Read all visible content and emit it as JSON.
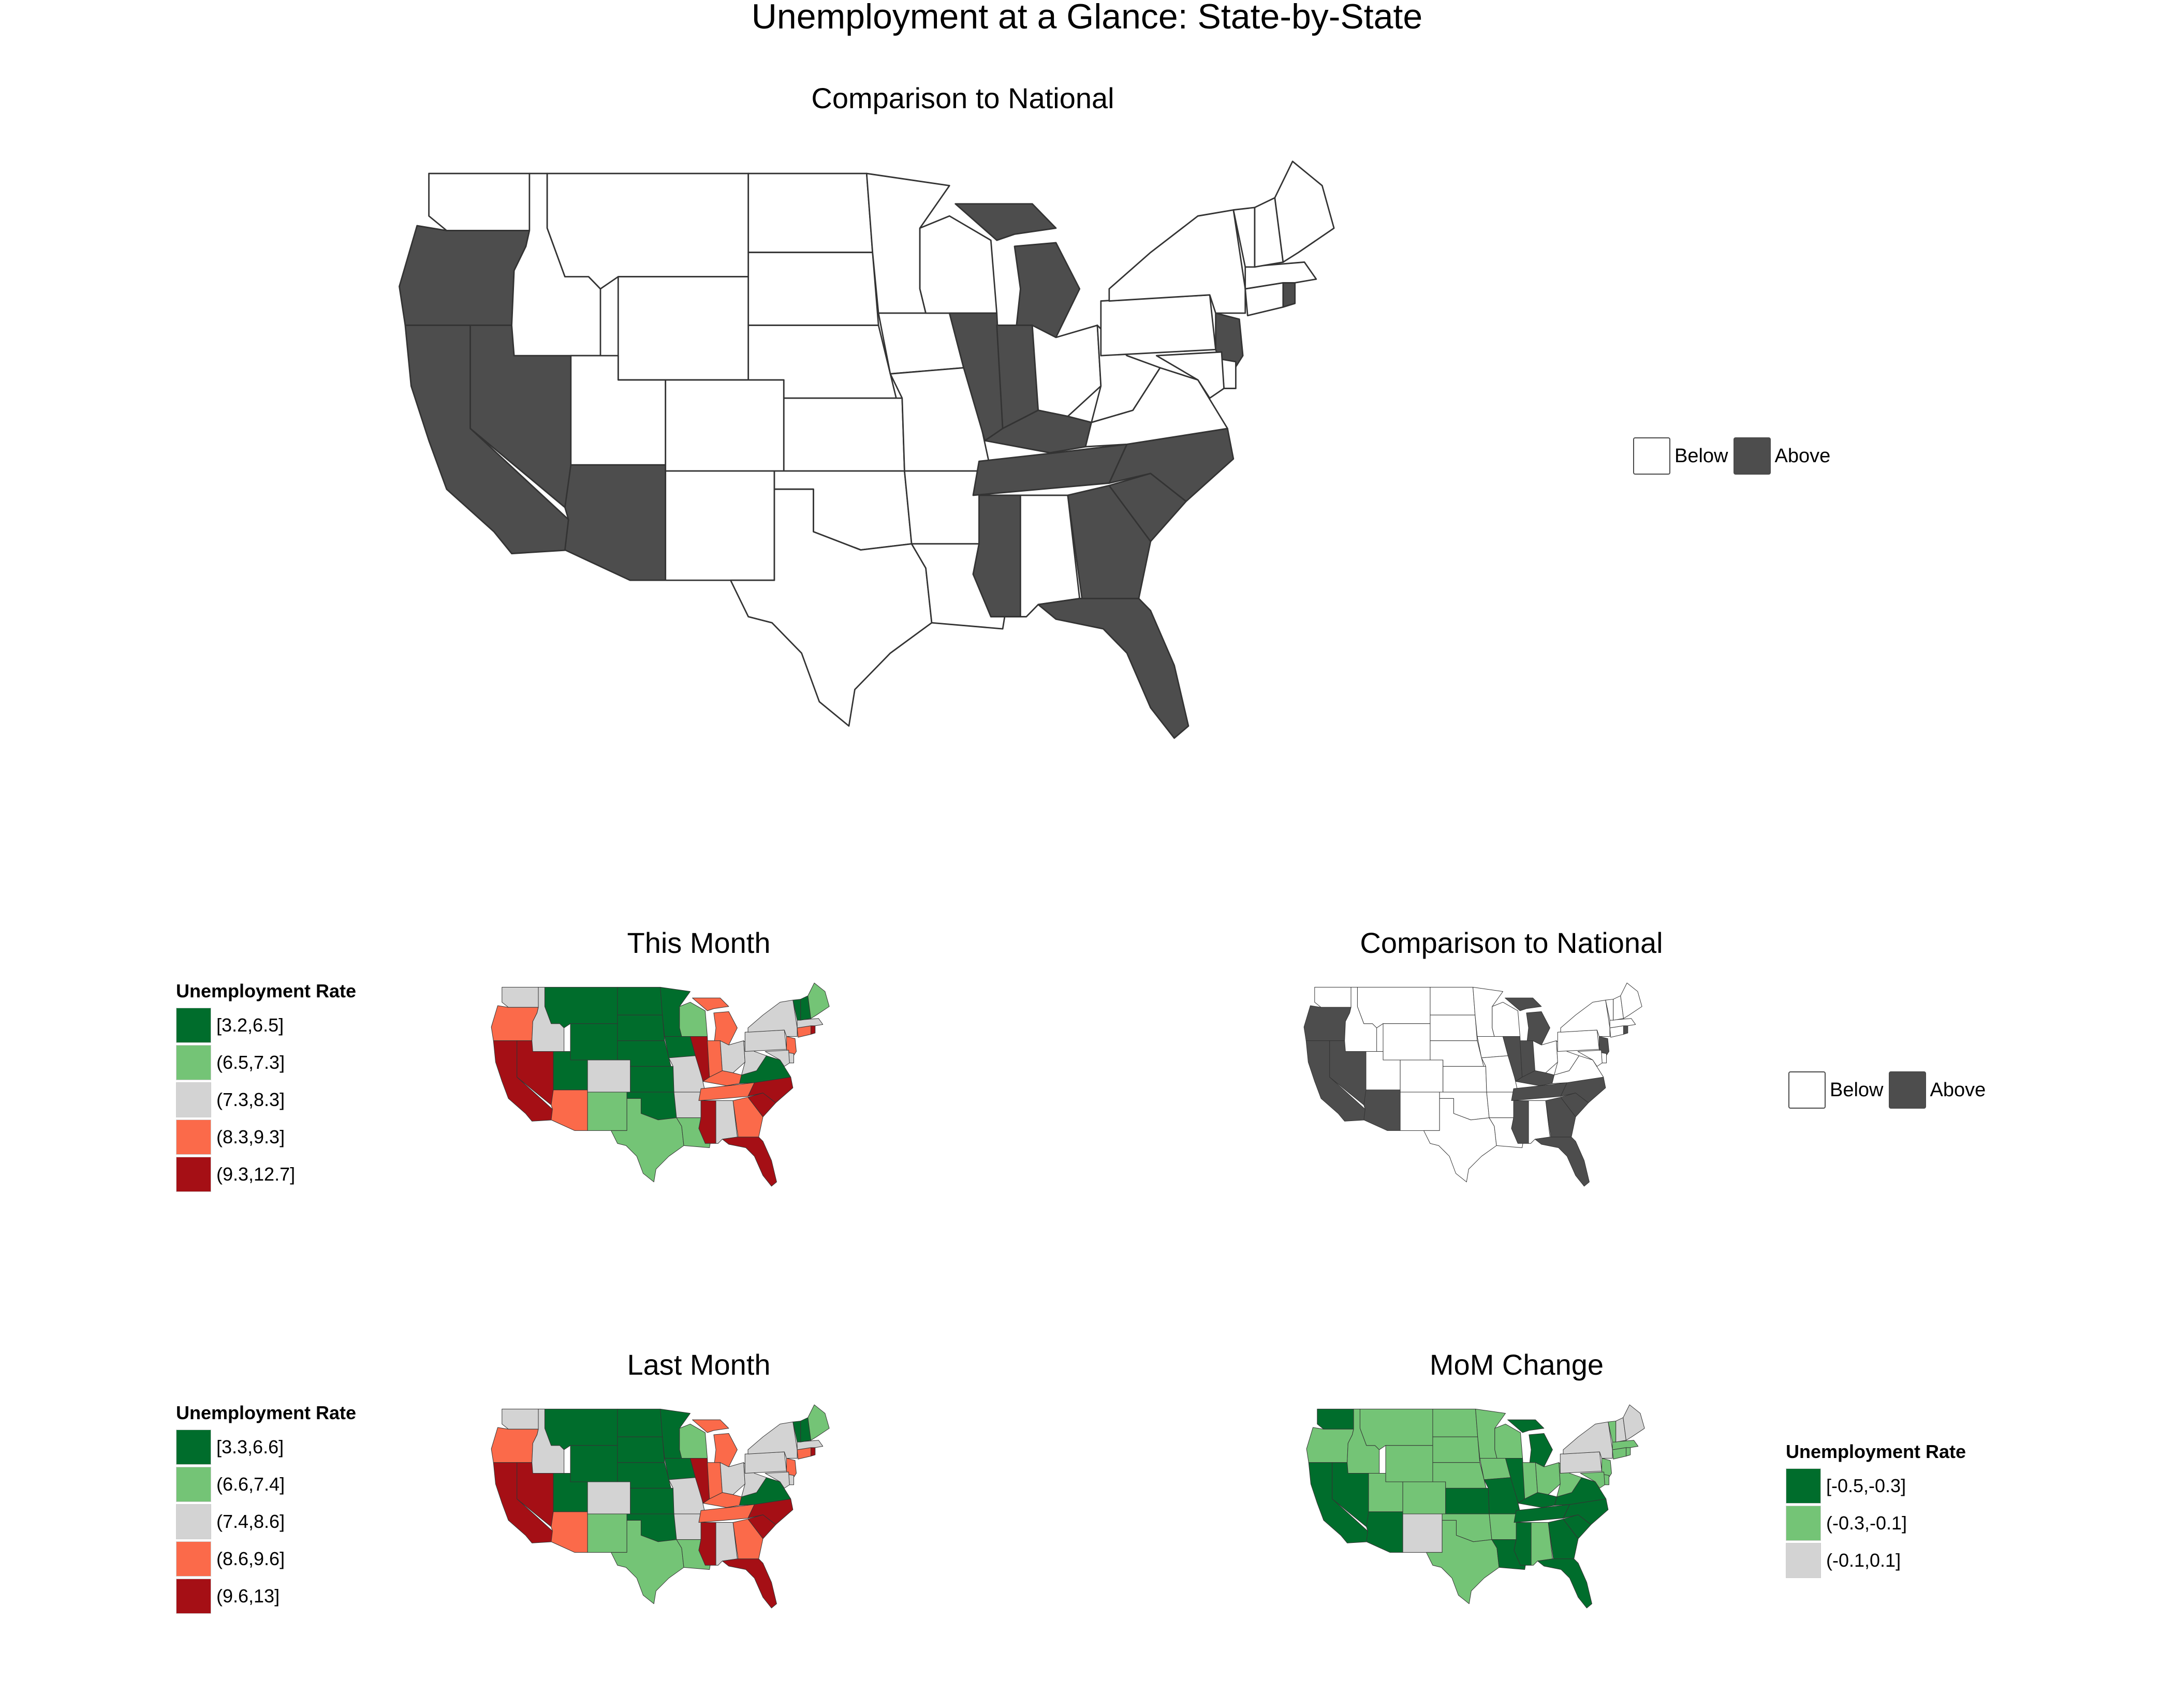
{
  "title": "Unemployment at a Glance: State-by-State",
  "colors": {
    "below": "#ffffff",
    "above": "#4d4d4d",
    "dark_green": "#006d2c",
    "light_green": "#74c476",
    "grey": "#d3d3d3",
    "salmon": "#fb6a4a",
    "dark_red": "#a50f15"
  },
  "panels": {
    "top": {
      "title": "Comparison to National",
      "legend": {
        "below": "Below",
        "above": "Above"
      }
    },
    "this_month": {
      "title": "This Month",
      "legend_title": "Unemployment Rate",
      "legend": [
        "[3.2,6.5]",
        "(6.5,7.3]",
        "(7.3,8.3]",
        "(8.3,9.3]",
        "(9.3,12.7]"
      ]
    },
    "comparison_small": {
      "title": "Comparison to National",
      "legend": {
        "below": "Below",
        "above": "Above"
      }
    },
    "last_month": {
      "title": "Last Month",
      "legend_title": "Unemployment Rate",
      "legend": [
        "[3.3,6.6]",
        "(6.6,7.4]",
        "(7.4,8.6]",
        "(8.6,9.6]",
        "(9.6,13]"
      ]
    },
    "mom_change": {
      "title": "MoM Change",
      "legend_title": "Unemployment Rate",
      "legend": [
        "[-0.5,-0.3]",
        "(-0.3,-0.1]",
        "(-0.1,0.1]"
      ]
    }
  },
  "map_data": {
    "comparison": {
      "WA": "Below",
      "OR": "Above",
      "CA": "Above",
      "NV": "Above",
      "ID": "Below",
      "MT": "Below",
      "WY": "Below",
      "UT": "Below",
      "AZ": "Above",
      "CO": "Below",
      "NM": "Below",
      "ND": "Below",
      "SD": "Below",
      "NE": "Below",
      "KS": "Below",
      "OK": "Below",
      "TX": "Below",
      "MN": "Below",
      "IA": "Below",
      "MO": "Below",
      "AR": "Below",
      "LA": "Below",
      "WI": "Below",
      "IL": "Above",
      "MI": "Above",
      "IN": "Above",
      "OH": "Below",
      "KY": "Above",
      "TN": "Above",
      "MS": "Above",
      "AL": "Below",
      "GA": "Above",
      "FL": "Above",
      "SC": "Above",
      "NC": "Above",
      "VA": "Below",
      "WV": "Below",
      "PA": "Below",
      "NY": "Below",
      "NJ": "Above",
      "DE": "Below",
      "MD": "Below",
      "CT": "Below",
      "RI": "Above",
      "MA": "Below",
      "VT": "Below",
      "NH": "Below",
      "ME": "Below"
    },
    "this_month": {
      "WA": 2,
      "OR": 3,
      "CA": 4,
      "NV": 4,
      "ID": 2,
      "MT": 0,
      "WY": 0,
      "UT": 0,
      "AZ": 3,
      "CO": 2,
      "NM": 1,
      "ND": 0,
      "SD": 0,
      "NE": 0,
      "KS": 0,
      "OK": 0,
      "TX": 1,
      "MN": 0,
      "IA": 0,
      "MO": 2,
      "AR": 2,
      "LA": 1,
      "WI": 1,
      "IL": 4,
      "MI": 3,
      "IN": 3,
      "OH": 2,
      "KY": 3,
      "TN": 3,
      "MS": 4,
      "AL": 2,
      "GA": 3,
      "FL": 4,
      "SC": 4,
      "NC": 4,
      "VA": 0,
      "WV": 2,
      "PA": 2,
      "NY": 2,
      "NJ": 3,
      "DE": 2,
      "MD": 2,
      "CT": 3,
      "RI": 4,
      "MA": 2,
      "VT": 0,
      "NH": 0,
      "ME": 1
    },
    "last_month": {
      "WA": 2,
      "OR": 3,
      "CA": 4,
      "NV": 4,
      "ID": 2,
      "MT": 0,
      "WY": 0,
      "UT": 0,
      "AZ": 3,
      "CO": 2,
      "NM": 1,
      "ND": 0,
      "SD": 0,
      "NE": 0,
      "KS": 0,
      "OK": 0,
      "TX": 1,
      "MN": 0,
      "IA": 0,
      "MO": 2,
      "AR": 2,
      "LA": 1,
      "WI": 1,
      "IL": 4,
      "MI": 3,
      "IN": 3,
      "OH": 2,
      "KY": 3,
      "TN": 3,
      "MS": 4,
      "AL": 2,
      "GA": 3,
      "FL": 4,
      "SC": 4,
      "NC": 4,
      "VA": 0,
      "WV": 2,
      "PA": 2,
      "NY": 2,
      "NJ": 3,
      "DE": 2,
      "MD": 2,
      "CT": 3,
      "RI": 4,
      "MA": 2,
      "VT": 0,
      "NH": 0,
      "ME": 1
    },
    "mom_change": {
      "WA": 0,
      "OR": 1,
      "CA": 0,
      "NV": 0,
      "ID": 1,
      "MT": 1,
      "WY": 1,
      "UT": 1,
      "AZ": 0,
      "CO": 1,
      "NM": 2,
      "ND": 1,
      "SD": 1,
      "NE": 1,
      "KS": 0,
      "OK": 1,
      "TX": 1,
      "MN": 1,
      "IA": 1,
      "MO": 0,
      "AR": 1,
      "LA": 0,
      "WI": 1,
      "IL": 0,
      "MI": 0,
      "IN": 1,
      "OH": 1,
      "KY": 0,
      "TN": 0,
      "MS": 0,
      "AL": 1,
      "GA": 0,
      "FL": 0,
      "SC": 0,
      "NC": 0,
      "VA": 0,
      "WV": 1,
      "PA": 2,
      "NY": 2,
      "NJ": 1,
      "DE": 1,
      "MD": 1,
      "CT": 1,
      "RI": 1,
      "MA": 1,
      "VT": 1,
      "NH": 2,
      "ME": 2
    }
  }
}
